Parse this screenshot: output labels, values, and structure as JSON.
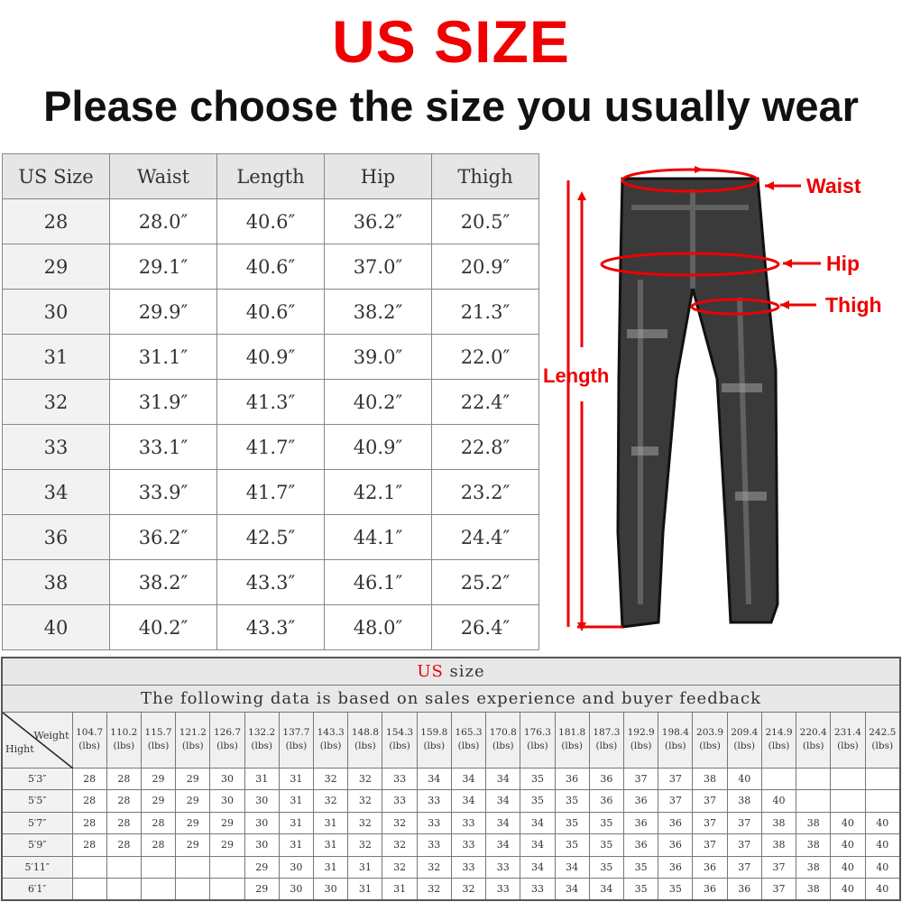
{
  "title": "US SIZE",
  "subtitle": "Please choose the size you usually wear",
  "size_table": {
    "headers": [
      "US Size",
      "Waist",
      "Length",
      "Hip",
      "Thigh"
    ],
    "rows": [
      [
        "28",
        "28.0″",
        "40.6″",
        "36.2″",
        "20.5″"
      ],
      [
        "29",
        "29.1″",
        "40.6″",
        "37.0″",
        "20.9″"
      ],
      [
        "30",
        "29.9″",
        "40.6″",
        "38.2″",
        "21.3″"
      ],
      [
        "31",
        "31.1″",
        "40.9″",
        "39.0″",
        "22.0″"
      ],
      [
        "32",
        "31.9″",
        "41.3″",
        "40.2″",
        "22.4″"
      ],
      [
        "33",
        "33.1″",
        "41.7″",
        "40.9″",
        "22.8″"
      ],
      [
        "34",
        "33.9″",
        "41.7″",
        "42.1″",
        "23.2″"
      ],
      [
        "36",
        "36.2″",
        "42.5″",
        "44.1″",
        "24.4″"
      ],
      [
        "38",
        "38.2″",
        "43.3″",
        "46.1″",
        "25.2″"
      ],
      [
        "40",
        "40.2″",
        "43.3″",
        "48.0″",
        "26.4″"
      ]
    ]
  },
  "diagram": {
    "labels": {
      "waist": "Waist",
      "hip": "Hip",
      "thigh": "Thigh",
      "length": "Length"
    },
    "accent": "#e00000"
  },
  "recommend_table": {
    "caption_red": "US",
    "caption_rest": " size",
    "note": "The following data is based on sales experience and buyer feedback",
    "corner_weight": "Weight",
    "corner_height": "Hight",
    "unit": "(lbs)",
    "weights": [
      "104.7",
      "110.2",
      "115.7",
      "121.2",
      "126.7",
      "132.2",
      "137.7",
      "143.3",
      "148.8",
      "154.3",
      "159.8",
      "165.3",
      "170.8",
      "176.3",
      "181.8",
      "187.3",
      "192.9",
      "198.4",
      "203.9",
      "209.4",
      "214.9",
      "220.4",
      "231.4",
      "242.5"
    ],
    "rows": [
      {
        "height": "5′3″",
        "sizes": [
          "28",
          "28",
          "29",
          "29",
          "30",
          "31",
          "31",
          "32",
          "32",
          "33",
          "34",
          "34",
          "34",
          "35",
          "36",
          "36",
          "37",
          "37",
          "38",
          "40",
          "",
          "",
          "",
          ""
        ]
      },
      {
        "height": "5′5″",
        "sizes": [
          "28",
          "28",
          "29",
          "29",
          "30",
          "30",
          "31",
          "32",
          "32",
          "33",
          "33",
          "34",
          "34",
          "35",
          "35",
          "36",
          "36",
          "37",
          "37",
          "38",
          "40",
          "",
          "",
          ""
        ]
      },
      {
        "height": "5′7″",
        "sizes": [
          "28",
          "28",
          "28",
          "29",
          "29",
          "30",
          "31",
          "31",
          "32",
          "32",
          "33",
          "33",
          "34",
          "34",
          "35",
          "35",
          "36",
          "36",
          "37",
          "37",
          "38",
          "38",
          "40",
          "40"
        ]
      },
      {
        "height": "5′9″",
        "sizes": [
          "28",
          "28",
          "28",
          "29",
          "29",
          "30",
          "31",
          "31",
          "32",
          "32",
          "33",
          "33",
          "34",
          "34",
          "35",
          "35",
          "36",
          "36",
          "37",
          "37",
          "38",
          "38",
          "40",
          "40"
        ]
      },
      {
        "height": "5′11″",
        "sizes": [
          "",
          "",
          "",
          "",
          "",
          "29",
          "30",
          "31",
          "31",
          "32",
          "32",
          "33",
          "33",
          "34",
          "34",
          "35",
          "35",
          "36",
          "36",
          "37",
          "37",
          "38",
          "40",
          "40"
        ]
      },
      {
        "height": "6′1″",
        "sizes": [
          "",
          "",
          "",
          "",
          "",
          "29",
          "30",
          "30",
          "31",
          "31",
          "32",
          "32",
          "33",
          "33",
          "34",
          "34",
          "35",
          "35",
          "36",
          "36",
          "37",
          "38",
          "40",
          "40"
        ]
      }
    ]
  }
}
